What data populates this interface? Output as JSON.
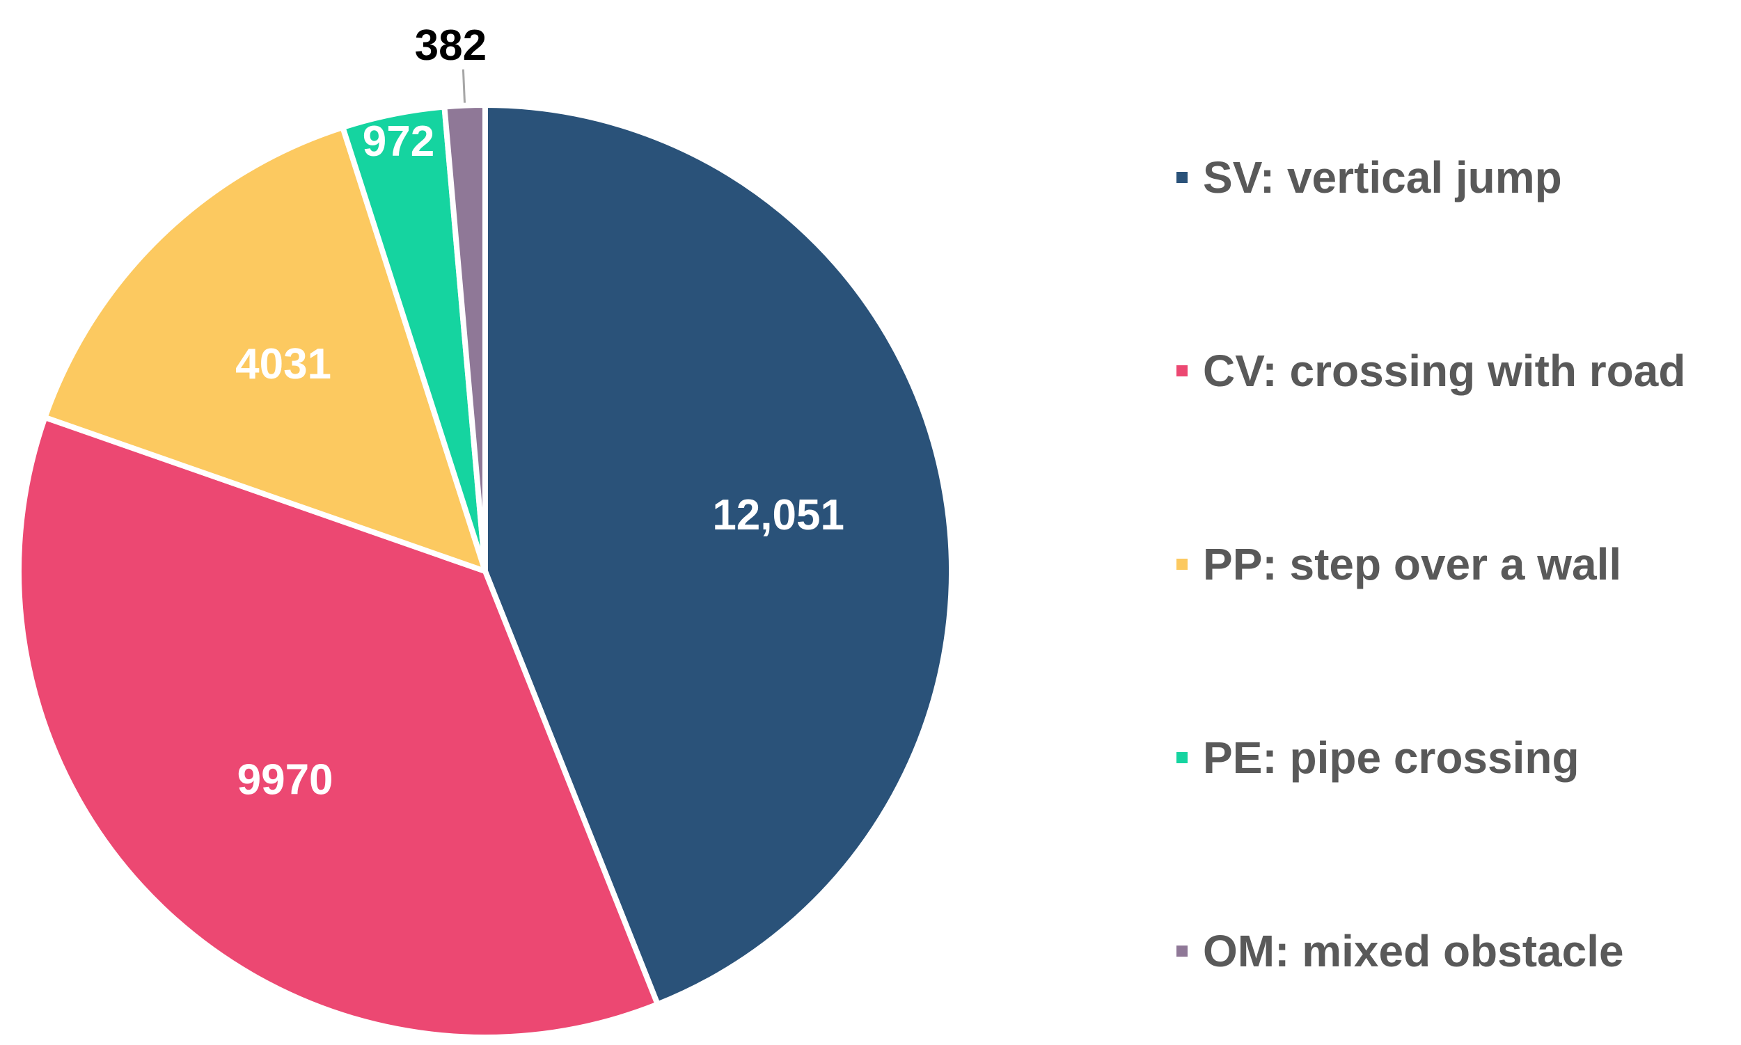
{
  "chart_data": {
    "type": "pie",
    "categories": [
      "SV: vertical jump",
      "CV: crossing with road",
      "PP: step over a wall",
      "PE: pipe crossing",
      "OM: mixed obstacle"
    ],
    "values": [
      12051,
      9970,
      4031,
      972,
      382
    ],
    "data_labels": [
      "12,051",
      "9970",
      "4031",
      "972",
      "382"
    ],
    "colors": [
      "#2a5279",
      "#ec4872",
      "#fcc960",
      "#15d4a0",
      "#8f7897"
    ],
    "start_angle_deg": 0,
    "direction": "clockwise",
    "legend_position": "right",
    "legend_marker": "square"
  }
}
